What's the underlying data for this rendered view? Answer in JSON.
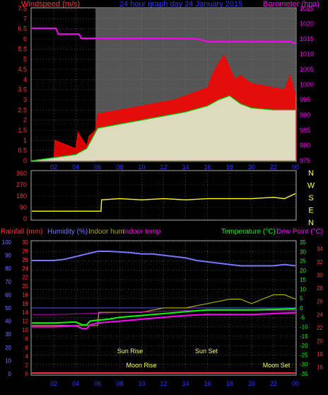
{
  "colors": {
    "wind_speed": "#ff0000",
    "wind_gust": "#ff0000",
    "wind_avg": "#00cc00",
    "wind_fill": "#ddffdd",
    "barometer": "#ff00ff",
    "direction": "#ffff00",
    "rainfall": "#ff3333",
    "humidity": "#7777ff",
    "indoor_hum": "#aaaa00",
    "indoor_temp": "#ff00ff",
    "temperature": "#00ff00",
    "dew_point": "#ff00ff",
    "axis_time": "#3333ff",
    "axis_left": "#ff3333",
    "axis_right": "#ff00ff",
    "plot_bg": "#000000",
    "plot_bg_day": "#555555",
    "grid": "#888888"
  },
  "header": {
    "left_label": "Windspeed (m/s)",
    "center_label": "24 hour graph day  24 January 2015",
    "right_label": "Barometer (hpa)"
  },
  "legend_bottom": {
    "rainfall": "Rainfall (mm)",
    "humidity": "Humidity (%)",
    "indoor_hum": "Indoor hum",
    "indoor_temp": "Indoor temp",
    "temperature": "Temperature (°C)",
    "dew_point": "Dew Point (°C)"
  },
  "annotations": {
    "sun_rise": "Sun Rise",
    "sun_set": "Sun Set",
    "moon_rise": "Moon Rise",
    "moon_set": "Moon Set"
  },
  "chart_data": [
    {
      "type": "line",
      "title": "24 hour graph day  24 January 2015",
      "x_ticks": [
        "02",
        "04",
        "06",
        "08",
        "10",
        "12",
        "14",
        "16",
        "18",
        "20",
        "22",
        "00"
      ],
      "ylabel": "Windspeed (m/s)",
      "ylim": [
        0,
        7.5
      ],
      "y_ticks": [
        "0",
        "0.5",
        "1",
        "1.5",
        "2",
        "2.5",
        "3",
        "3.5",
        "4",
        "4.5",
        "5",
        "5.5",
        "6",
        "6.5",
        "7",
        "7.5"
      ],
      "ylabel_right": "Barometer (hpa)",
      "ylim_right": [
        975,
        1025
      ],
      "y_ticks_right": [
        "975",
        "980",
        "985",
        "990",
        "995",
        "1000",
        "1005",
        "1010",
        "1015",
        "1020",
        "1025"
      ],
      "series": [
        {
          "name": "Windspeed (m/s)",
          "x": [
            0,
            2,
            2.1,
            4,
            4.2,
            5,
            5.2,
            5.8,
            6,
            7,
            8,
            9,
            10,
            11,
            12,
            13,
            14,
            15,
            16,
            16.5,
            17,
            17.5,
            18,
            18.5,
            19,
            20,
            21,
            22,
            23,
            23.5,
            24
          ],
          "values": [
            0,
            0,
            1,
            0.6,
            1.4,
            0.7,
            1.2,
            1.5,
            2.3,
            2.4,
            2.5,
            2.6,
            2.7,
            2.8,
            2.9,
            3.0,
            3.2,
            3.4,
            3.6,
            4.3,
            4.8,
            5.2,
            4.6,
            4.0,
            4.2,
            3.8,
            3.7,
            3.6,
            3.5,
            4.2,
            3.2
          ]
        },
        {
          "name": "Average windspeed",
          "x": [
            0,
            4,
            5,
            6,
            8,
            10,
            12,
            14,
            16,
            17,
            18,
            19,
            20,
            22,
            24
          ],
          "values": [
            0,
            0.3,
            0.6,
            1.6,
            1.8,
            2.0,
            2.2,
            2.4,
            2.7,
            3.0,
            3.2,
            2.8,
            2.6,
            2.5,
            2.5
          ]
        },
        {
          "name": "Barometer (hpa)",
          "axis": "right",
          "x": [
            0,
            2.2,
            2.4,
            2.6,
            3.1,
            3.3,
            4.3,
            4.5,
            5.0,
            10.0,
            15.0,
            16.0,
            20.0,
            23.6,
            24.0
          ],
          "values": [
            1018.5,
            1018.5,
            1016.6,
            1016.6,
            1016.6,
            1016.6,
            1016.6,
            1015.2,
            1015.2,
            1015.2,
            1015.1,
            1014.1,
            1014.1,
            1014.1,
            1013.5
          ]
        }
      ]
    },
    {
      "type": "line",
      "x_ticks": [
        "02",
        "04",
        "06",
        "08",
        "10",
        "12",
        "14",
        "16",
        "18",
        "20",
        "22",
        "00"
      ],
      "ylim": [
        0,
        360
      ],
      "y_ticks": [
        "0",
        "90",
        "180",
        "270",
        "360"
      ],
      "y_ticks_right": [
        "N",
        "W",
        "S",
        "E",
        "N"
      ],
      "series": [
        {
          "name": "Wind direction",
          "x": [
            0,
            6.3,
            6.35,
            8,
            10,
            12,
            14,
            16,
            18,
            20,
            22,
            23,
            24
          ],
          "values": [
            60,
            60,
            150,
            160,
            150,
            160,
            150,
            160,
            160,
            160,
            170,
            160,
            200
          ]
        }
      ]
    },
    {
      "type": "line",
      "x_ticks": [
        "02",
        "04",
        "06",
        "08",
        "10",
        "12",
        "14",
        "16",
        "18",
        "20",
        "22",
        "00"
      ],
      "y_ticks_left_rain": [
        "0",
        "2",
        "4",
        "6",
        "8",
        "10",
        "12",
        "14",
        "16",
        "18",
        "20",
        "22",
        "24",
        "26",
        "28",
        "30"
      ],
      "y_ticks_left_hum": [
        "0",
        "10",
        "20",
        "30",
        "40",
        "50",
        "60",
        "70",
        "80",
        "90",
        "100"
      ],
      "y_ticks_right_temp": [
        "-35",
        "-30",
        "-25",
        "-20",
        "-15",
        "-10",
        "-5",
        "0",
        "5",
        "10",
        "15",
        "20",
        "25",
        "30",
        "35"
      ],
      "y_ticks_right_indoor": [
        "16",
        "18",
        "20",
        "22",
        "24",
        "26",
        "28",
        "30",
        "32",
        "34"
      ],
      "series": [
        {
          "name": "Humidity (%)",
          "x": [
            0,
            2,
            3,
            4,
            5,
            6,
            7,
            9,
            10,
            11,
            12,
            13,
            14,
            15,
            16,
            17,
            18,
            19,
            20,
            21,
            22,
            23,
            24
          ],
          "values": [
            86,
            86,
            87,
            89,
            91,
            93,
            93,
            92,
            91,
            91,
            90,
            89,
            88,
            86,
            85,
            84,
            83,
            82,
            82,
            82,
            82,
            83,
            82
          ]
        },
        {
          "name": "Temperature (°C)",
          "axis": "right",
          "x": [
            0,
            2,
            4,
            4.6,
            5,
            5.3,
            6,
            7,
            8,
            10,
            12,
            14,
            16,
            18,
            20,
            22,
            24
          ],
          "values": [
            -8,
            -8,
            -7.5,
            -9,
            -9,
            -7,
            -6.5,
            -6,
            -5,
            -4,
            -3,
            -2,
            -1,
            -1,
            -1,
            -0.8,
            -0.5
          ]
        },
        {
          "name": "Dew Point (°C)",
          "axis": "right",
          "x": [
            0,
            2,
            4,
            4.6,
            5,
            5.3,
            6,
            7,
            8,
            10,
            12,
            14,
            16,
            18,
            20,
            22,
            24
          ],
          "values": [
            -10,
            -10,
            -9.5,
            -11,
            -11,
            -9,
            -8,
            -7.5,
            -7,
            -6,
            -5,
            -4,
            -3.5,
            -3.5,
            -3.5,
            -3,
            -2.5
          ]
        },
        {
          "name": "Indoor temp",
          "x": [
            0,
            2,
            4,
            6,
            8,
            10,
            12,
            14,
            16,
            18,
            20,
            22,
            24
          ],
          "values": [
            24.0,
            24.0,
            24.1,
            24.2,
            24.3,
            24.4,
            24.5,
            24.6,
            24.6,
            24.6,
            24.6,
            24.6,
            24.6
          ]
        },
        {
          "name": "Indoor hum",
          "x": [
            0,
            6,
            6.1,
            8,
            10,
            12,
            14,
            16,
            18,
            19,
            20,
            21,
            22,
            23,
            24
          ],
          "values": [
            11,
            11,
            14,
            14,
            14,
            15,
            15,
            16,
            17,
            17,
            16,
            17,
            18,
            18,
            17
          ]
        },
        {
          "name": "Rainfall (mm)",
          "x": [
            0,
            24
          ],
          "values": [
            0,
            0
          ]
        }
      ]
    }
  ]
}
